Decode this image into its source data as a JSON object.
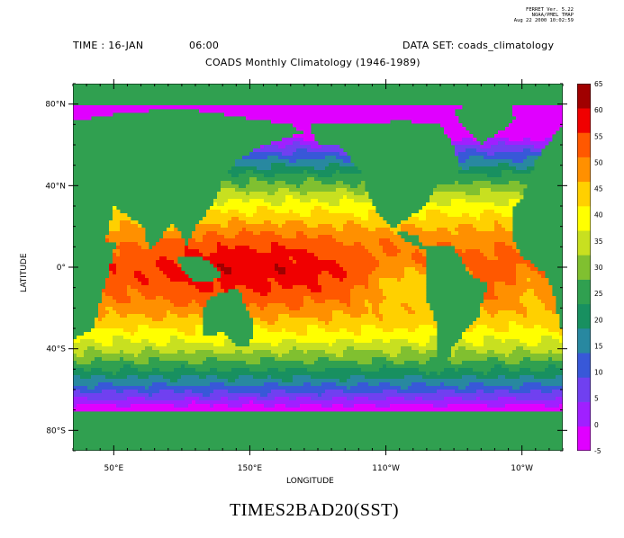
{
  "stamp": {
    "line1": "FERRET Ver. 5.22",
    "line2": "NOAA/PMEL TMAP",
    "line3": "Aug 22 2000 10:02:59"
  },
  "header": {
    "time_label": "TIME : 16-JAN",
    "time_value": "06:00",
    "dataset_label": "DATA SET: coads_climatology",
    "title": "COADS Monthly Climatology (1946-1989)"
  },
  "chart_data": {
    "type": "heatmap",
    "title": "TIMES2BAD20(SST)",
    "xlabel": "LONGITUDE",
    "ylabel": "LATITUDE",
    "x_ticks": [
      "50°E",
      "150°E",
      "110°W",
      "10°W"
    ],
    "y_ticks": [
      "80°N",
      "40°N",
      "0°",
      "40°S",
      "80°S"
    ],
    "colorbar_levels": [
      -5,
      0,
      5,
      10,
      15,
      20,
      25,
      30,
      35,
      40,
      45,
      50,
      55,
      60,
      65
    ],
    "colorbar_labels": [
      "-5",
      "0",
      "5",
      "10",
      "15",
      "20",
      "25",
      "30",
      "35",
      "40",
      "45",
      "50",
      "55",
      "60",
      "65"
    ],
    "colors": [
      "#e000ff",
      "#a020ff",
      "#7040f0",
      "#3858d8",
      "#2888a0",
      "#189060",
      "#30a050",
      "#80c030",
      "#c8e020",
      "#ffff00",
      "#ffd000",
      "#ff9000",
      "#ff5800",
      "#f00000",
      "#a00000"
    ],
    "land_color": "#30a050"
  },
  "colors": {
    "background": "#ffffff",
    "land": "#30a050"
  }
}
